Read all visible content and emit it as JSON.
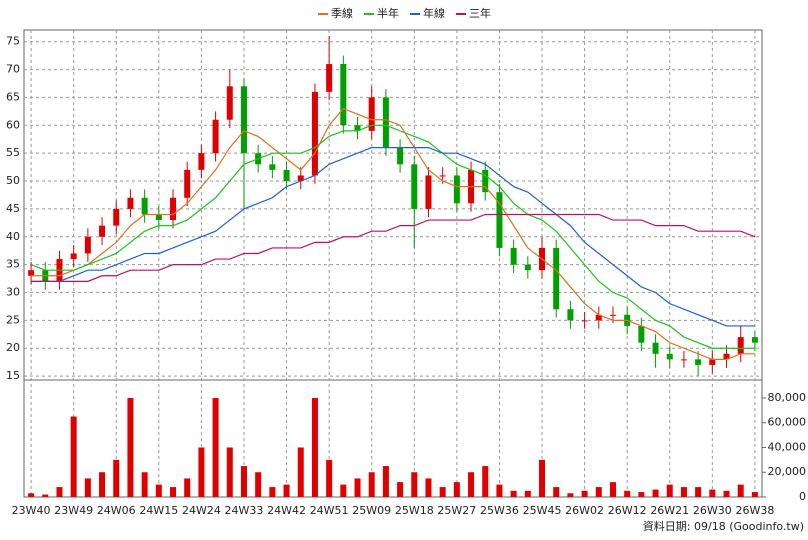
{
  "chart_data": {
    "type": "candlestick",
    "categories": [
      "23W40",
      null,
      null,
      "23W49",
      null,
      null,
      "24W06",
      null,
      null,
      "24W15",
      null,
      null,
      "24W24",
      null,
      null,
      "24W33",
      null,
      null,
      "24W42",
      null,
      null,
      "24W51",
      null,
      null,
      "25W09",
      null,
      null,
      "25W18",
      null,
      null,
      "25W27",
      null,
      null,
      "25W36",
      null,
      null,
      "25W45",
      null,
      null,
      "26W02",
      null,
      null,
      "26W12",
      null,
      null,
      "26W21",
      null,
      null,
      "26W30",
      null,
      null,
      "26W38"
    ],
    "open": [
      33,
      34,
      32,
      36,
      37,
      40,
      42,
      45,
      47,
      44,
      43,
      47,
      52,
      55,
      61,
      67,
      55,
      53,
      52,
      50,
      51,
      66,
      71,
      60,
      59,
      65,
      56,
      53,
      45,
      51,
      51,
      46,
      52,
      48,
      38,
      35,
      34,
      38,
      27,
      25,
      25,
      26,
      26,
      24,
      21,
      19,
      18,
      18,
      17,
      18,
      19,
      22
    ],
    "high": [
      35.5,
      35.5,
      37.5,
      38.5,
      41.5,
      43.5,
      46.5,
      48.5,
      48.5,
      45.5,
      48.5,
      53.5,
      56.5,
      62.5,
      70,
      68.5,
      56.5,
      54.5,
      53.5,
      52.5,
      67.5,
      76,
      72.5,
      61.5,
      67,
      66.5,
      57.5,
      54.5,
      52.5,
      52.5,
      52.5,
      53.5,
      53.5,
      49.5,
      39.5,
      36.5,
      40,
      39.5,
      28.5,
      26.5,
      27.5,
      27.5,
      27.5,
      25.5,
      22.5,
      20.5,
      19.5,
      19.5,
      19.5,
      20.5,
      24,
      23
    ],
    "low": [
      31.5,
      30.5,
      30.5,
      34.5,
      35.5,
      38.5,
      40.5,
      43.5,
      42.5,
      41.5,
      41.5,
      45.5,
      50.5,
      53.5,
      59.5,
      45,
      51.5,
      50.5,
      48.5,
      48.5,
      49.5,
      64.5,
      58.5,
      57.5,
      57.5,
      54.5,
      51.5,
      38,
      43.5,
      49.5,
      44.5,
      44.5,
      46.5,
      36.5,
      33.5,
      32.5,
      32.5,
      25.5,
      23.5,
      23.5,
      23.5,
      24.5,
      22.5,
      19.5,
      16.5,
      16.5,
      16.5,
      15,
      15.5,
      16.5,
      17.5,
      19.5
    ],
    "close": [
      34,
      32,
      36,
      37,
      40,
      42,
      45,
      47,
      44,
      43,
      47,
      52,
      55,
      61,
      67,
      55,
      53,
      52,
      50,
      51,
      66,
      71,
      60,
      59,
      65,
      56,
      53,
      45,
      51,
      51,
      46,
      52,
      48,
      38,
      35,
      34,
      38,
      27,
      25,
      25,
      26,
      26,
      24,
      21,
      19,
      18,
      18,
      17,
      18,
      19,
      22,
      21
    ],
    "up_color": "#e00000",
    "down_color": "#00a000",
    "ylim": [
      14.3,
      77.1
    ],
    "yticks": [
      15,
      20,
      25,
      30,
      35,
      40,
      45,
      50,
      55,
      60,
      65,
      70,
      75
    ],
    "grid": true,
    "series": [
      {
        "name": "季線",
        "color": "#e07020",
        "values": [
          33,
          33,
          33,
          34,
          35,
          37,
          39,
          42,
          44,
          44,
          44,
          46,
          49,
          52,
          56,
          59,
          58,
          56,
          54,
          52,
          55,
          60,
          63,
          62,
          61,
          61,
          60,
          56,
          52,
          50,
          49,
          49,
          49,
          46,
          42,
          38,
          36,
          34,
          31,
          28,
          26,
          25,
          25,
          24,
          23,
          21,
          20,
          19,
          18,
          18,
          19,
          19
        ]
      },
      {
        "name": "半年",
        "color": "#20c020",
        "values": [
          35,
          34,
          34,
          34,
          35,
          36,
          37,
          39,
          41,
          42,
          42,
          43,
          45,
          47,
          50,
          53,
          54,
          55,
          55,
          55,
          56,
          58,
          59,
          59,
          60,
          60,
          59,
          58,
          57,
          55,
          53,
          52,
          51,
          49,
          46,
          44,
          43,
          41,
          38,
          35,
          32,
          30,
          29,
          27,
          25,
          24,
          22,
          21,
          20,
          20,
          20,
          20
        ]
      },
      {
        "name": "年線",
        "color": "#2060d0",
        "values": [
          32,
          32,
          32,
          33,
          34,
          34,
          35,
          36,
          37,
          37,
          38,
          39,
          40,
          41,
          43,
          45,
          46,
          47,
          49,
          50,
          51,
          53,
          54,
          55,
          56,
          56,
          56,
          56,
          56,
          55,
          55,
          54,
          53,
          51,
          49,
          48,
          46,
          44,
          42,
          39,
          37,
          35,
          33,
          31,
          30,
          28,
          27,
          26,
          25,
          24,
          24,
          24
        ]
      },
      {
        "name": "三年",
        "color": "#c01060",
        "values": [
          32,
          32,
          32,
          32,
          32,
          33,
          33,
          34,
          34,
          34,
          35,
          35,
          35,
          36,
          36,
          37,
          37,
          38,
          38,
          38,
          39,
          39,
          40,
          40,
          41,
          41,
          42,
          42,
          43,
          43,
          43,
          43,
          44,
          44,
          44,
          44,
          44,
          44,
          44,
          44,
          44,
          43,
          43,
          43,
          42,
          42,
          42,
          41,
          41,
          41,
          41,
          40
        ]
      }
    ],
    "volume": {
      "color": "#e00000",
      "values": [
        3000,
        2000,
        8000,
        65000,
        15000,
        20000,
        30000,
        80000,
        20000,
        10000,
        8000,
        15000,
        40000,
        80000,
        40000,
        25000,
        20000,
        8000,
        10000,
        40000,
        80000,
        30000,
        10000,
        15000,
        20000,
        25000,
        12000,
        20000,
        15000,
        8000,
        12000,
        20000,
        25000,
        10000,
        5000,
        5000,
        30000,
        8000,
        3000,
        5000,
        8000,
        12000,
        5000,
        4000,
        6000,
        10000,
        8000,
        8000,
        6000,
        5000,
        10000,
        4000
      ],
      "ylim": [
        0,
        94500
      ],
      "yticks": [
        0,
        {
          "value": 20000,
          "label": "20,000"
        },
        {
          "value": 40000,
          "label": "40,000"
        },
        {
          "value": 60000,
          "label": "60,000"
        },
        {
          "value": 80000,
          "label": "80,000"
        }
      ]
    },
    "footer": "資料日期: 09/18 (Goodinfo.tw)"
  }
}
